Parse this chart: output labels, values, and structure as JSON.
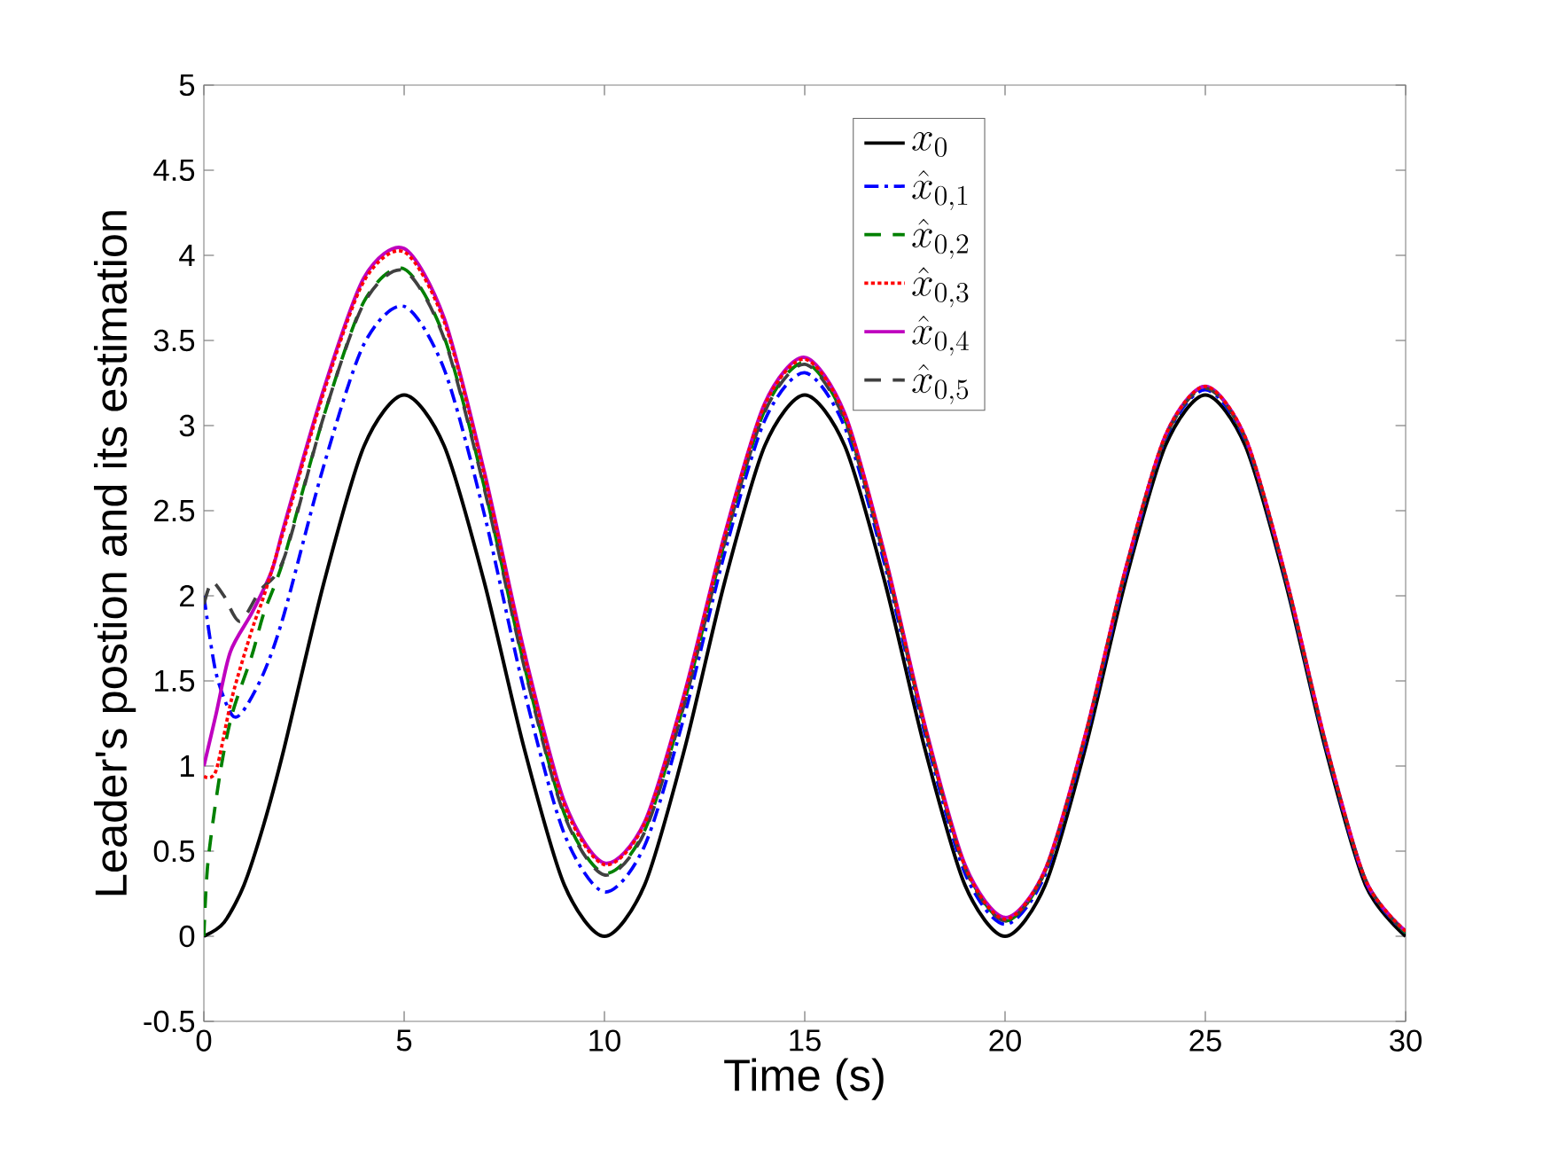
{
  "chart_data": {
    "type": "line",
    "xlabel": "Time (s)",
    "ylabel": "Leader's postion and its estimation",
    "xlim": [
      0,
      30
    ],
    "ylim": [
      -0.5,
      5
    ],
    "xticks": [
      0,
      5,
      10,
      15,
      20,
      25,
      30
    ],
    "yticks": [
      -0.5,
      0,
      0.5,
      1,
      1.5,
      2,
      2.5,
      3,
      3.5,
      4,
      4.5,
      5
    ],
    "legend": "top",
    "grid": false,
    "series": [
      {
        "name": "x_0",
        "color": "#000000",
        "line_style": "solid",
        "x": [
          0,
          0.5,
          1,
          1.5,
          2,
          3,
          4,
          5,
          6,
          7,
          8,
          9,
          10,
          11,
          12,
          13,
          14,
          15,
          16,
          17,
          18,
          19,
          20,
          21,
          22,
          23,
          24,
          25,
          26,
          27,
          28,
          29,
          30
        ],
        "values": [
          0,
          0.08,
          0.3,
          0.66,
          1.1,
          2.08,
          2.88,
          3.18,
          2.88,
          2.08,
          1.1,
          0.3,
          0,
          0.3,
          1.1,
          2.08,
          2.88,
          3.18,
          2.88,
          2.08,
          1.1,
          0.3,
          0,
          0.3,
          1.1,
          2.08,
          2.88,
          3.18,
          2.88,
          2.08,
          1.1,
          0.3,
          0
        ]
      },
      {
        "name": "\\hat{x}_{0,1}",
        "color": "#0000ff",
        "line_style": "dashdot",
        "x": [
          0,
          0.3,
          0.7,
          1,
          1.5,
          2,
          3,
          4,
          5,
          6,
          7,
          8,
          9,
          10,
          11,
          12,
          13,
          14,
          15,
          16,
          17,
          18,
          19,
          20,
          21,
          22,
          23,
          24,
          25,
          26,
          27,
          28,
          29,
          30
        ],
        "values": [
          2.0,
          1.55,
          1.3,
          1.33,
          1.55,
          1.89,
          2.77,
          3.48,
          3.7,
          3.33,
          2.48,
          1.44,
          0.6,
          0.26,
          0.53,
          1.3,
          2.25,
          3.03,
          3.31,
          2.99,
          2.18,
          1.19,
          0.37,
          0.07,
          0.36,
          1.15,
          2.12,
          2.92,
          3.21,
          2.91,
          2.1,
          1.12,
          0.32,
          0.02
        ]
      },
      {
        "name": "\\hat{x}_{0,2}",
        "color": "#008000",
        "line_style": "dashed",
        "x": [
          0,
          0.1,
          0.4,
          0.7,
          1.2,
          1.5,
          2,
          3,
          4,
          5,
          6,
          7,
          8,
          9,
          10,
          11,
          12,
          13,
          14,
          15,
          16,
          17,
          18,
          19,
          20,
          21,
          22,
          23,
          24,
          25,
          26,
          27,
          28,
          29,
          30
        ],
        "values": [
          0,
          0.43,
          0.95,
          1.3,
          1.65,
          1.9,
          2.22,
          3.06,
          3.73,
          3.92,
          3.52,
          2.64,
          1.59,
          0.72,
          0.37,
          0.62,
          1.38,
          2.32,
          3.09,
          3.37,
          3.04,
          2.22,
          1.22,
          0.41,
          0.09,
          0.38,
          1.17,
          2.14,
          2.93,
          3.23,
          2.92,
          2.11,
          1.13,
          0.33,
          0.02
        ]
      },
      {
        "name": "\\hat{x}_{0,3}",
        "color": "#ff0000",
        "line_style": "dotted",
        "x": [
          0,
          0.3,
          0.7,
          1.2,
          1.5,
          2,
          3,
          4,
          5,
          6,
          7,
          8,
          9,
          10,
          11,
          12,
          13,
          14,
          15,
          16,
          17,
          18,
          19,
          20,
          21,
          22,
          23,
          24,
          25,
          26,
          27,
          28,
          29,
          30
        ],
        "values": [
          0.94,
          0.97,
          1.4,
          1.8,
          2.0,
          2.39,
          3.2,
          3.85,
          4.02,
          3.61,
          2.71,
          1.65,
          0.77,
          0.42,
          0.66,
          1.42,
          2.35,
          3.12,
          3.39,
          3.06,
          2.23,
          1.23,
          0.41,
          0.1,
          0.39,
          1.18,
          2.15,
          2.94,
          3.23,
          2.93,
          2.12,
          1.14,
          0.33,
          0.03
        ]
      },
      {
        "name": "\\hat{x}_{0,4}",
        "color": "#bf00bf",
        "line_style": "solid",
        "x": [
          0,
          0.3,
          0.66,
          1.2,
          1.7,
          2,
          3,
          4,
          5,
          6,
          7,
          8,
          9,
          10,
          11,
          12,
          13,
          14,
          15,
          16,
          17,
          18,
          19,
          20,
          21,
          22,
          23,
          24,
          25,
          26,
          27,
          28,
          29,
          30
        ],
        "values": [
          1.0,
          1.3,
          1.67,
          1.9,
          2.15,
          2.41,
          3.22,
          3.87,
          4.04,
          3.63,
          2.73,
          1.67,
          0.79,
          0.43,
          0.67,
          1.43,
          2.36,
          3.13,
          3.4,
          3.07,
          2.24,
          1.24,
          0.42,
          0.11,
          0.39,
          1.18,
          2.15,
          2.94,
          3.23,
          2.93,
          2.12,
          1.14,
          0.33,
          0.03
        ]
      },
      {
        "name": "\\hat{x}_{0,5}",
        "color": "#404040",
        "line_style": "dashed",
        "x": [
          0,
          0.2,
          0.5,
          0.9,
          1.4,
          2,
          3,
          4,
          5,
          6,
          7,
          8,
          9,
          10,
          11,
          12,
          13,
          14,
          15,
          16,
          17,
          18,
          19,
          20,
          21,
          22,
          23,
          24,
          25,
          26,
          27,
          28,
          29,
          30
        ],
        "values": [
          1.95,
          2.08,
          2.0,
          1.85,
          2.03,
          2.22,
          3.06,
          3.72,
          3.91,
          3.51,
          2.63,
          1.58,
          0.71,
          0.36,
          0.61,
          1.37,
          2.31,
          3.08,
          3.36,
          3.03,
          2.21,
          1.22,
          0.4,
          0.09,
          0.38,
          1.17,
          2.14,
          2.93,
          3.22,
          2.92,
          2.11,
          1.13,
          0.33,
          0.02
        ]
      }
    ]
  }
}
